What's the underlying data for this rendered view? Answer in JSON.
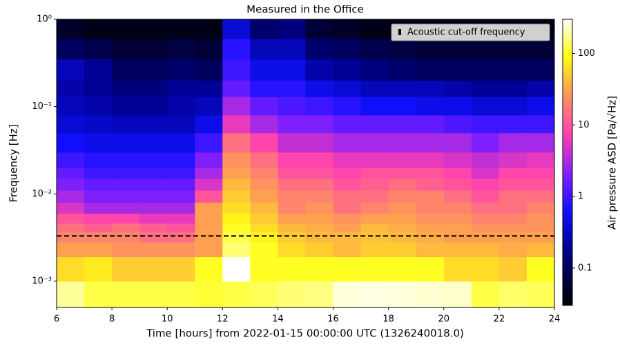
{
  "chart_data": {
    "type": "heatmap",
    "title": "Measured in the Office",
    "x_label": "Time [hours] from 2022-01-15 00:00:00 UTC (1326240018.0)",
    "y_label": "Frequency [Hz]",
    "colorbar_label": "Air pressure ASD [Pa/√Hz]",
    "xlim": [
      6,
      24
    ],
    "xticks": [
      6,
      8,
      10,
      12,
      14,
      16,
      18,
      20,
      22,
      24
    ],
    "ylim": [
      0.0005,
      1
    ],
    "log_y": true,
    "yticks": [
      {
        "value": 0.001,
        "label": "10⁻³"
      },
      {
        "value": 0.01,
        "label": "10⁻²"
      },
      {
        "value": 0.1,
        "label": "10⁻¹"
      },
      {
        "value": 1,
        "label": "10⁰"
      }
    ],
    "clim": [
      0.03,
      300
    ],
    "log_color": true,
    "cticks": [
      0.1,
      1,
      10,
      100
    ],
    "colormap": [
      {
        "pos": 0,
        "color": "#000000"
      },
      {
        "pos": 0.2,
        "color": "#000090"
      },
      {
        "pos": 0.33,
        "color": "#1010ff"
      },
      {
        "pos": 0.45,
        "color": "#7a1eff"
      },
      {
        "pos": 0.6,
        "color": "#ff40b0"
      },
      {
        "pos": 0.75,
        "color": "#ffa050"
      },
      {
        "pos": 0.87,
        "color": "#ffff10"
      },
      {
        "pos": 1,
        "color": "#ffffff"
      }
    ],
    "x_bins": [
      6,
      7,
      8,
      9,
      10,
      11,
      12,
      13,
      14,
      15,
      16,
      17,
      18,
      19,
      20,
      21,
      22,
      23,
      24
    ],
    "y_bins": [
      0.0005,
      0.001,
      0.0019,
      0.0028,
      0.0037,
      0.0046,
      0.006,
      0.008,
      0.011,
      0.015,
      0.02,
      0.03,
      0.05,
      0.08,
      0.13,
      0.2,
      0.35,
      0.6,
      1.0
    ],
    "z": [
      [
        180,
        120,
        120,
        120,
        120,
        110,
        120,
        130,
        150,
        160,
        250,
        260,
        250,
        240,
        230,
        120,
        140,
        130
      ],
      [
        60,
        70,
        50,
        50,
        50,
        100,
        300,
        100,
        100,
        100,
        100,
        100,
        100,
        100,
        60,
        60,
        50,
        100
      ],
      [
        30,
        30,
        25,
        25,
        25,
        30,
        150,
        100,
        60,
        50,
        40,
        50,
        50,
        40,
        40,
        40,
        35,
        40
      ],
      [
        20,
        20,
        20,
        15,
        15,
        30,
        120,
        80,
        50,
        40,
        40,
        45,
        40,
        35,
        30,
        30,
        30,
        30
      ],
      [
        15,
        12,
        15,
        12,
        10,
        30,
        100,
        60,
        40,
        35,
        30,
        40,
        35,
        30,
        30,
        25,
        25,
        25
      ],
      [
        10,
        8,
        8,
        6,
        6,
        30,
        80,
        50,
        30,
        30,
        25,
        30,
        30,
        25,
        25,
        20,
        20,
        25
      ],
      [
        5,
        3,
        3,
        3,
        3,
        30,
        60,
        40,
        20,
        25,
        15,
        20,
        25,
        20,
        20,
        15,
        15,
        20
      ],
      [
        3,
        2,
        2,
        2,
        2,
        10,
        50,
        30,
        20,
        20,
        15,
        15,
        20,
        20,
        15,
        10,
        15,
        15
      ],
      [
        2,
        1.5,
        1.5,
        1.5,
        1.5,
        5,
        40,
        25,
        15,
        15,
        10,
        12,
        15,
        12,
        10,
        8,
        10,
        10
      ],
      [
        1.5,
        1,
        1,
        1,
        1,
        3,
        30,
        20,
        10,
        10,
        8,
        10,
        10,
        10,
        8,
        5,
        8,
        8
      ],
      [
        1,
        0.8,
        0.8,
        0.8,
        0.8,
        2,
        25,
        15,
        8,
        8,
        6,
        6,
        6,
        6,
        5,
        4,
        5,
        6
      ],
      [
        0.6,
        0.5,
        0.5,
        0.5,
        0.5,
        1,
        15,
        8,
        4,
        4,
        3,
        3,
        3,
        3,
        3,
        2,
        3,
        3
      ],
      [
        0.4,
        0.35,
        0.3,
        0.3,
        0.3,
        0.5,
        6,
        3,
        2,
        2,
        1.5,
        1.5,
        1.5,
        1.5,
        1.2,
        1,
        1,
        1
      ],
      [
        0.3,
        0.25,
        0.2,
        0.2,
        0.25,
        0.3,
        3,
        1.5,
        1.2,
        1,
        0.8,
        0.6,
        0.6,
        0.5,
        0.5,
        0.4,
        0.4,
        0.5
      ],
      [
        0.25,
        0.2,
        0.15,
        0.15,
        0.2,
        0.2,
        1.5,
        0.8,
        0.8,
        0.5,
        0.4,
        0.3,
        0.3,
        0.3,
        0.25,
        0.2,
        0.2,
        0.25
      ],
      [
        0.3,
        0.2,
        0.1,
        0.1,
        0.12,
        0.1,
        1,
        0.5,
        0.5,
        0.25,
        0.2,
        0.15,
        0.12,
        0.1,
        0.1,
        0.1,
        0.1,
        0.1
      ],
      [
        0.1,
        0.08,
        0.06,
        0.06,
        0.07,
        0.06,
        0.8,
        0.3,
        0.3,
        0.12,
        0.1,
        0.08,
        0.07,
        0.06,
        0.06,
        0.06,
        0.06,
        0.06
      ],
      [
        0.05,
        0.04,
        0.04,
        0.04,
        0.04,
        0.04,
        0.4,
        0.12,
        0.15,
        0.06,
        0.05,
        0.04,
        0.04,
        0.04,
        0.04,
        0.04,
        0.04,
        0.04
      ]
    ],
    "cutoff_frequency": 0.0033,
    "cutoff_color": "#000000",
    "legend_label": "Acoustic cut-off frequency",
    "legend_position": "upper right"
  }
}
